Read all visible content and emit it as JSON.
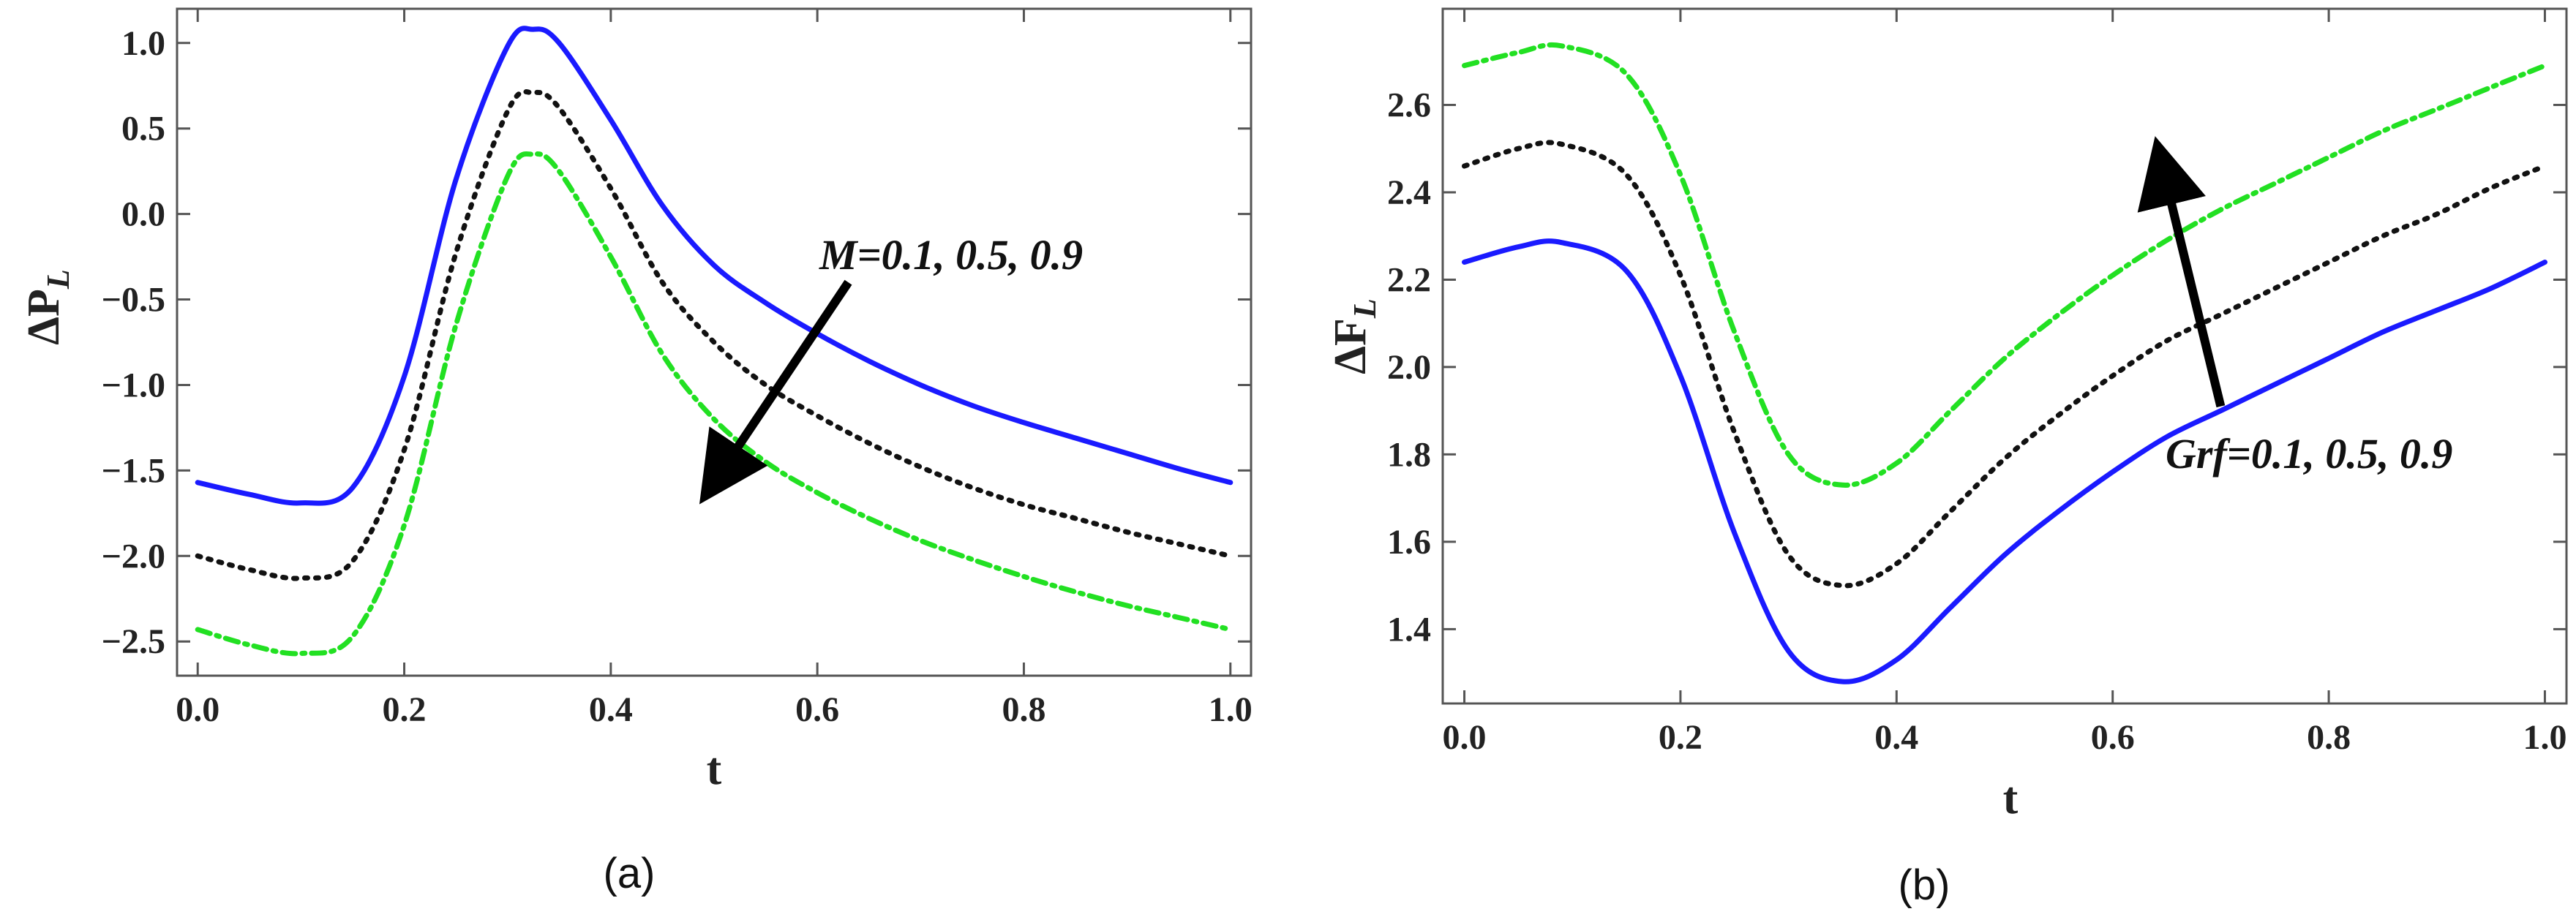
{
  "chart_data": [
    {
      "type": "line",
      "caption": "(a)",
      "xlabel": "t",
      "ylabel": "ΔP",
      "ylabel_sub": "L",
      "xlim": [
        -0.02,
        1.02
      ],
      "ylim": [
        -2.7,
        1.2
      ],
      "xticks": [
        "0.0",
        "0.2",
        "0.4",
        "0.6",
        "0.8",
        "1.0"
      ],
      "xtick_values": [
        0.0,
        0.2,
        0.4,
        0.6,
        0.8,
        1.0
      ],
      "yticks": [
        "−2.5",
        "−2.0",
        "−1.5",
        "−1.0",
        "−0.5",
        "0.0",
        "0.5",
        "1.0"
      ],
      "ytick_values": [
        -2.5,
        -2.0,
        -1.5,
        -1.0,
        -0.5,
        0.0,
        0.5,
        1.0
      ],
      "annotation": {
        "text": "M=0.1, 0.5, 0.9",
        "arrow_from": [
          0.63,
          -0.4
        ],
        "arrow_to": [
          0.5,
          -1.57
        ]
      },
      "x": [
        0.0,
        0.05,
        0.1,
        0.15,
        0.2,
        0.25,
        0.3,
        0.325,
        0.35,
        0.4,
        0.45,
        0.5,
        0.55,
        0.6,
        0.65,
        0.7,
        0.75,
        0.8,
        0.85,
        0.9,
        0.95,
        1.0
      ],
      "series": [
        {
          "name": "M=0.1",
          "color": "#1a1aff",
          "dash": "solid",
          "values": [
            -1.57,
            -1.64,
            -1.69,
            -1.6,
            -0.95,
            0.2,
            0.98,
            1.08,
            1.0,
            0.55,
            0.05,
            -0.3,
            -0.52,
            -0.7,
            -0.86,
            -1.0,
            -1.12,
            -1.22,
            -1.31,
            -1.4,
            -1.49,
            -1.57
          ]
        },
        {
          "name": "M=0.5",
          "color": "#111111",
          "dash": "dotted",
          "values": [
            -2.0,
            -2.08,
            -2.13,
            -2.03,
            -1.38,
            -0.23,
            0.6,
            0.71,
            0.62,
            0.15,
            -0.4,
            -0.75,
            -1.0,
            -1.18,
            -1.34,
            -1.48,
            -1.6,
            -1.7,
            -1.78,
            -1.86,
            -1.93,
            -2.0
          ]
        },
        {
          "name": "M=0.9",
          "color": "#22e022",
          "dash": "dashdot",
          "values": [
            -2.43,
            -2.52,
            -2.57,
            -2.47,
            -1.82,
            -0.65,
            0.22,
            0.35,
            0.25,
            -0.25,
            -0.82,
            -1.2,
            -1.45,
            -1.63,
            -1.78,
            -1.91,
            -2.02,
            -2.12,
            -2.21,
            -2.29,
            -2.36,
            -2.43
          ]
        }
      ]
    },
    {
      "type": "line",
      "caption": "(b)",
      "xlabel": "t",
      "ylabel": "ΔF",
      "ylabel_sub": "L",
      "xlim": [
        -0.02,
        1.02
      ],
      "ylim": [
        1.23,
        2.82
      ],
      "xticks": [
        "0.0",
        "0.2",
        "0.4",
        "0.6",
        "0.8",
        "1.0"
      ],
      "xtick_values": [
        0.0,
        0.2,
        0.4,
        0.6,
        0.8,
        1.0
      ],
      "yticks": [
        "1.4",
        "1.6",
        "1.8",
        "2.0",
        "2.2",
        "2.4",
        "2.6"
      ],
      "ytick_values": [
        1.4,
        1.6,
        1.8,
        2.0,
        2.2,
        2.4,
        2.6
      ],
      "annotation": {
        "text": "Grf=0.1, 0.5, 0.9",
        "arrow_from": [
          0.7,
          1.91
        ],
        "arrow_to": [
          0.645,
          2.47
        ]
      },
      "x": [
        0.0,
        0.05,
        0.09,
        0.15,
        0.2,
        0.25,
        0.3,
        0.35,
        0.4,
        0.45,
        0.5,
        0.55,
        0.6,
        0.65,
        0.7,
        0.75,
        0.8,
        0.85,
        0.9,
        0.95,
        1.0
      ],
      "series": [
        {
          "name": "Grf=0.1",
          "color": "#1a1aff",
          "dash": "solid",
          "values": [
            2.24,
            2.275,
            2.285,
            2.22,
            1.98,
            1.62,
            1.35,
            1.28,
            1.33,
            1.45,
            1.57,
            1.67,
            1.76,
            1.84,
            1.9,
            1.96,
            2.02,
            2.08,
            2.13,
            2.18,
            2.24
          ]
        },
        {
          "name": "Grf=0.5",
          "color": "#111111",
          "dash": "dotted",
          "values": [
            2.46,
            2.5,
            2.51,
            2.44,
            2.21,
            1.85,
            1.57,
            1.5,
            1.55,
            1.67,
            1.79,
            1.89,
            1.98,
            2.06,
            2.12,
            2.18,
            2.24,
            2.3,
            2.35,
            2.41,
            2.46
          ]
        },
        {
          "name": "Grf=0.9",
          "color": "#22e022",
          "dash": "dashdot",
          "values": [
            2.69,
            2.72,
            2.735,
            2.67,
            2.44,
            2.08,
            1.8,
            1.73,
            1.78,
            1.9,
            2.02,
            2.12,
            2.21,
            2.29,
            2.36,
            2.42,
            2.48,
            2.54,
            2.59,
            2.64,
            2.69
          ]
        }
      ]
    }
  ]
}
